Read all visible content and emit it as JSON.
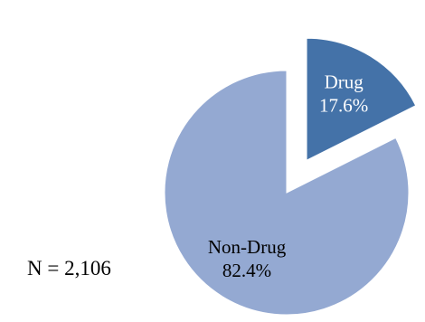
{
  "chart_data": {
    "type": "pie",
    "title": "",
    "slices": [
      {
        "label": "Drug",
        "value": 17.6,
        "value_label": "17.6%",
        "color": "#4472a8",
        "text_color": "#ffffff",
        "exploded": true
      },
      {
        "label": "Non-Drug",
        "value": 82.4,
        "value_label": "82.4%",
        "color": "#94a9d2",
        "text_color": "#000000",
        "exploded": false
      }
    ],
    "annotation": "N = 2,106"
  }
}
